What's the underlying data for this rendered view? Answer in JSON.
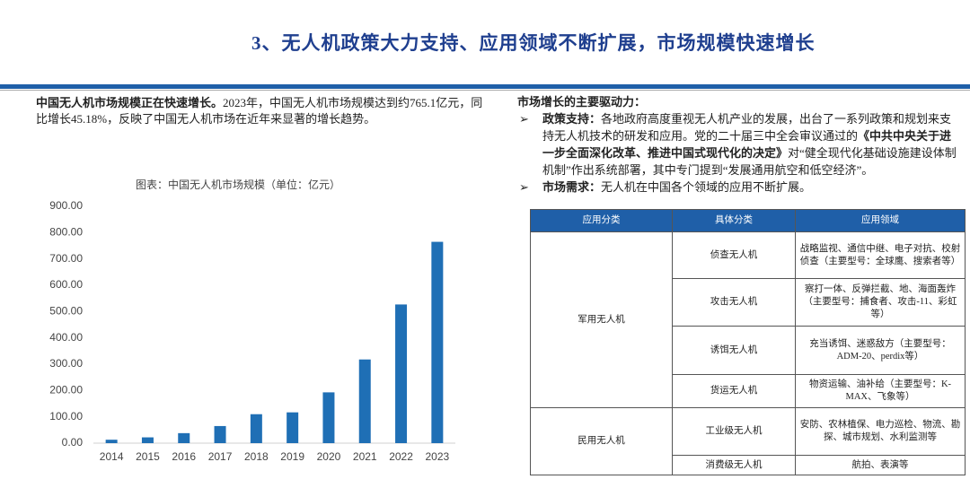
{
  "header": {
    "title": "3、无人机政策大力支持、应用领域不断扩展，市场规模快速增长"
  },
  "left": {
    "lead": "中国无人机市场规模正在快速增长。",
    "text": "2023年，中国无人机市场规模达到约765.1亿元，同比增长45.18%，反映了中国无人机市场在近年来显著的增长趋势。"
  },
  "chart_data": {
    "type": "bar",
    "title": "图表：中国无人机市场规模（单位：亿元）",
    "categories": [
      "2014",
      "2015",
      "2016",
      "2017",
      "2018",
      "2019",
      "2020",
      "2021",
      "2022",
      "2023"
    ],
    "values": [
      13,
      22,
      38,
      65,
      110,
      117,
      193,
      318,
      527,
      765.1
    ],
    "color": "#1f6fb5",
    "ylim": [
      0,
      900
    ],
    "yticks": [
      {
        "value": 0,
        "label": "0.00"
      },
      {
        "value": 100,
        "label": "100.00"
      },
      {
        "value": 200,
        "label": "200.00"
      },
      {
        "value": 300,
        "label": "300.00"
      },
      {
        "value": 400,
        "label": "400.00"
      },
      {
        "value": 500,
        "label": "500.00"
      },
      {
        "value": 600,
        "label": "600.00"
      },
      {
        "value": 700,
        "label": "700.00"
      },
      {
        "value": 800,
        "label": "800.00"
      },
      {
        "value": 900,
        "label": "900.00"
      }
    ],
    "grid": false
  },
  "right": {
    "heading": "市场增长的主要驱动力：",
    "bullets": [
      {
        "label": "政策支持：",
        "text": "各地政府高度重视无人机产业的发展，出台了一系列政策和规划来支持无人机技术的研发和应用。党的二十届三中全会审议通过的",
        "bold": "《中共中央关于进一步全面深化改革、推进中国式现代化的决定》",
        "tail": "对“健全现代化基础设施建设体制机制”作出系统部署，其中专门提到“发展通用航空和低空经济”。"
      },
      {
        "label": "市场需求：",
        "text": "无人机在中国各个领域的应用不断扩展。"
      }
    ]
  },
  "table": {
    "header": [
      "应用分类",
      "具体分类",
      "应用领域"
    ],
    "groups": [
      {
        "name": "军用无人机",
        "rows": [
          [
            "侦查无人机",
            "战略监视、通信中继、电子对抗、校射侦查（主要型号：全球鹰、搜索者等）"
          ],
          [
            "攻击无人机",
            "察打一体、反弹拦截、地、海面轰炸（主要型号：捕食者、攻击-11、彩虹等）"
          ],
          [
            "诱饵无人机",
            "充当诱饵、迷惑敌方（主要型号：ADM-20、perdix等）"
          ],
          [
            "货运无人机",
            "物资运输、油补给（主要型号：K-MAX、飞象等）"
          ]
        ]
      },
      {
        "name": "民用无人机",
        "rows": [
          [
            "工业级无人机",
            "安防、农林植保、电力巡检、物流、勘探、城市规划、水利监测等"
          ],
          [
            "消费级无人机",
            "航拍、表演等"
          ]
        ]
      }
    ]
  }
}
